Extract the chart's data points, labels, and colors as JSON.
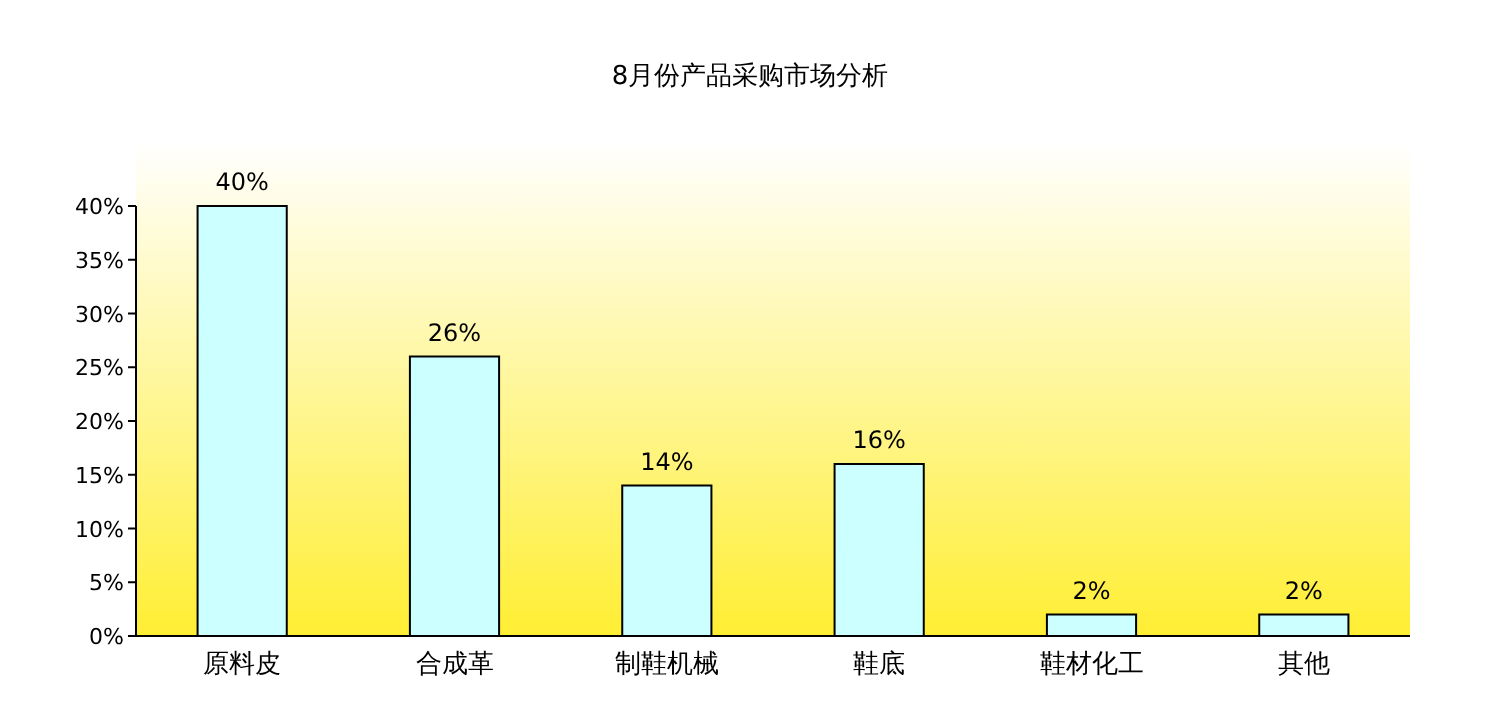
{
  "chart_data": {
    "type": "bar",
    "title": "8月份产品采购市场分析",
    "categories": [
      "原料皮",
      "合成革",
      "制鞋机械",
      "鞋底",
      "鞋材化工",
      "其他"
    ],
    "values": [
      40,
      26,
      14,
      16,
      2,
      2
    ],
    "value_labels": [
      "40%",
      "26%",
      "14%",
      "16%",
      "2%",
      "2%"
    ],
    "color": "#ccffff",
    "ylim": [
      0,
      40
    ],
    "yticks": [
      {
        "value": 0,
        "label": "0%"
      },
      {
        "value": 5,
        "label": "5%"
      },
      {
        "value": 10,
        "label": "10%"
      },
      {
        "value": 15,
        "label": "15%"
      },
      {
        "value": 20,
        "label": "20%"
      },
      {
        "value": 25,
        "label": "25%"
      },
      {
        "value": 30,
        "label": "30%"
      },
      {
        "value": 35,
        "label": "35%"
      },
      {
        "value": 40,
        "label": "40%"
      }
    ],
    "grid": false
  }
}
